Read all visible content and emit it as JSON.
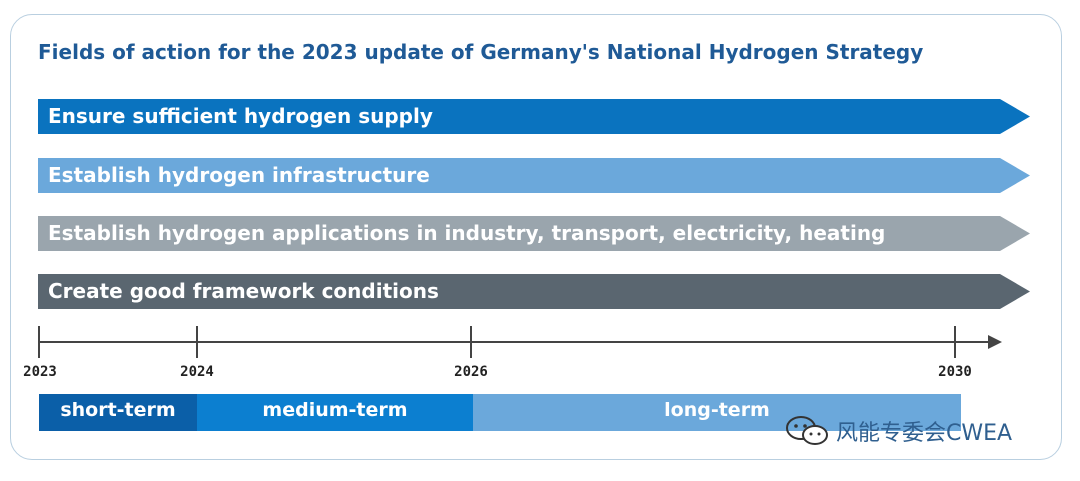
{
  "title": "Fields of action for the 2023 update of Germany's National Hydrogen Strategy",
  "fields": [
    {
      "label": "Ensure sufficient hydrogen supply",
      "color": "#0a73bf"
    },
    {
      "label": "Establish hydrogen infrastructure",
      "color": "#6ba8db"
    },
    {
      "label": "Establish hydrogen applications in industry, transport, electricity, heating",
      "color": "#9aa5ad"
    },
    {
      "label": "Create good framework conditions",
      "color": "#5a6670"
    }
  ],
  "timeline": {
    "years": [
      "2023",
      "2024",
      "2026",
      "2030"
    ],
    "terms": [
      {
        "label": "short-term",
        "color": "#0b5fa8"
      },
      {
        "label": "medium-term",
        "color": "#0c7fd0"
      },
      {
        "label": "long-term",
        "color": "#6ba8db"
      }
    ]
  },
  "watermark": {
    "text": "风能专委会CWEA",
    "icon": "wechat-icon"
  }
}
